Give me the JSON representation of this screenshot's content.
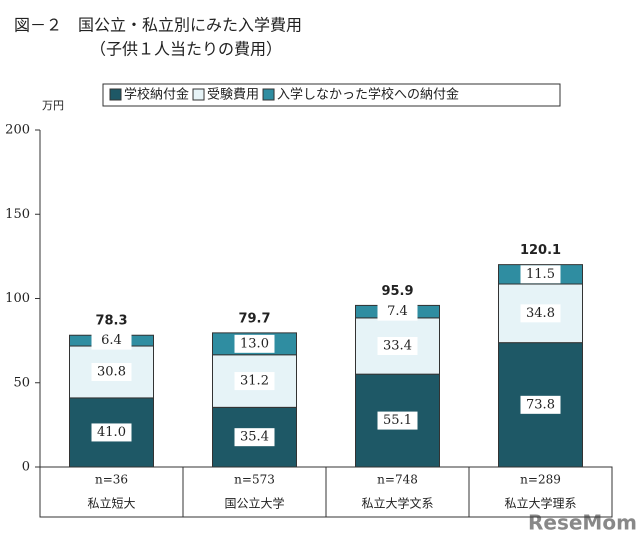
{
  "chart_data": {
    "type": "stacked_bar",
    "title": "図－２　国公立・私立別にみた入学費用",
    "subtitle": "（子供１人当たりの費用）",
    "y_label": "万円",
    "categories": [
      "私立短大",
      "国公立大学",
      "私立大学文系",
      "私立大学理系"
    ],
    "sample_sizes": [
      "n=36",
      "n=573",
      "n=748",
      "n=289"
    ],
    "series": [
      {
        "name": "学校納付金",
        "color": "#1e5866",
        "values": [
          41.0,
          35.4,
          55.1,
          73.8
        ],
        "value_labels": [
          "41.0",
          "35.4",
          "55.1",
          "73.8"
        ]
      },
      {
        "name": "受験費用",
        "color": "#e6f3f7",
        "values": [
          30.8,
          31.2,
          33.4,
          34.8
        ],
        "value_labels": [
          "30.8",
          "31.2",
          "33.4",
          "34.8"
        ]
      },
      {
        "name": "入学しなかった学校への納付金",
        "color": "#2f8da1",
        "values": [
          6.4,
          13.0,
          7.4,
          11.5
        ],
        "value_labels": [
          "6.4",
          "13.0",
          "7.4",
          "11.5"
        ]
      }
    ],
    "totals": [
      78.3,
      79.7,
      95.9,
      120.1
    ],
    "ylim": [
      0,
      200
    ],
    "yticks": [
      0,
      50,
      100,
      150,
      200
    ],
    "watermark": "ReseMom"
  }
}
